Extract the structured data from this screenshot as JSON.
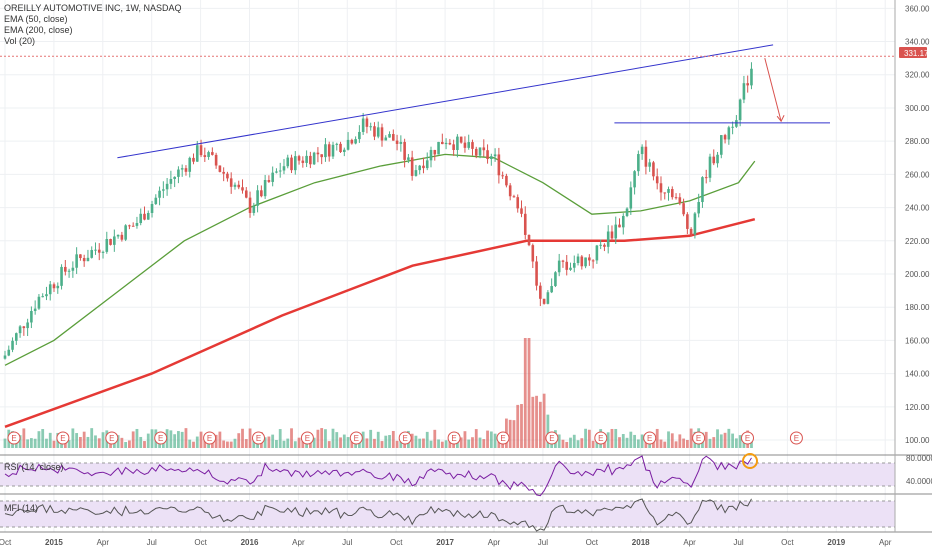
{
  "legend": {
    "title": "OREILLY AUTOMOTIVE INC, 1W, NASDAQ",
    "ema50": "EMA (50, close)",
    "ema200": "EMA (200, close)",
    "vol": "Vol (20)"
  },
  "last_price_label": "331.17",
  "rsi_label": "RSI (14, close)",
  "mfi_label": "MFI (14)",
  "earnings_marker": "E",
  "colors": {
    "up": "#4caf8a",
    "down": "#d9534f",
    "ema50": "#5a9e3a",
    "ema200": "#e53935",
    "trendline": "#3333cc",
    "rsi": "#7b1fa2",
    "oscillator_band": "#e9ddf5",
    "price_line": "#e57373",
    "highlight": "#f39c12"
  },
  "chart_data": {
    "type": "candlestick",
    "title": "OREILLY AUTOMOTIVE INC, 1W, NASDAQ",
    "y_axis": {
      "ticks": [
        100,
        120,
        140,
        160,
        180,
        200,
        220,
        240,
        260,
        280,
        300,
        320,
        340,
        360
      ],
      "range": [
        94,
        362
      ]
    },
    "x_axis": {
      "labels": [
        "Oct",
        "2015",
        "Apr",
        "Jul",
        "Oct",
        "2016",
        "Apr",
        "Jul",
        "Oct",
        "2017",
        "Apr",
        "Jul",
        "Oct",
        "2018",
        "Apr",
        "Jul",
        "Oct",
        "2019",
        "Apr"
      ]
    },
    "price_anchors": [
      {
        "time": "2014-10",
        "price": 151
      },
      {
        "time": "2014-12",
        "price": 185
      },
      {
        "time": "2015-02",
        "price": 205
      },
      {
        "time": "2015-04",
        "price": 218
      },
      {
        "time": "2015-06",
        "price": 230
      },
      {
        "time": "2015-08",
        "price": 255
      },
      {
        "time": "2015-10",
        "price": 275
      },
      {
        "time": "2015-12",
        "price": 255
      },
      {
        "time": "2016-01",
        "price": 240
      },
      {
        "time": "2016-03",
        "price": 265
      },
      {
        "time": "2016-05",
        "price": 272
      },
      {
        "time": "2016-07",
        "price": 280
      },
      {
        "time": "2016-08",
        "price": 290
      },
      {
        "time": "2016-10",
        "price": 280
      },
      {
        "time": "2016-11",
        "price": 262
      },
      {
        "time": "2017-01",
        "price": 282
      },
      {
        "time": "2017-03",
        "price": 272
      },
      {
        "time": "2017-04",
        "price": 270
      },
      {
        "time": "2017-05",
        "price": 250
      },
      {
        "time": "2017-06",
        "price": 225
      },
      {
        "time": "2017-07",
        "price": 175
      },
      {
        "time": "2017-08",
        "price": 205
      },
      {
        "time": "2017-10",
        "price": 210
      },
      {
        "time": "2017-12",
        "price": 235
      },
      {
        "time": "2018-01",
        "price": 275
      },
      {
        "time": "2018-02",
        "price": 255
      },
      {
        "time": "2018-03",
        "price": 250
      },
      {
        "time": "2018-04",
        "price": 225
      },
      {
        "time": "2018-05",
        "price": 262
      },
      {
        "time": "2018-06",
        "price": 280
      },
      {
        "time": "2018-07",
        "price": 300
      },
      {
        "time": "2018-08",
        "price": 331.17
      }
    ],
    "series": [
      {
        "name": "EMA (50, close)",
        "points": [
          {
            "time": "2014-10",
            "value": 145
          },
          {
            "time": "2015-01",
            "value": 160
          },
          {
            "time": "2015-05",
            "value": 190
          },
          {
            "time": "2015-09",
            "value": 220
          },
          {
            "time": "2016-01",
            "value": 240
          },
          {
            "time": "2016-05",
            "value": 255
          },
          {
            "time": "2016-09",
            "value": 265
          },
          {
            "time": "2017-01",
            "value": 272
          },
          {
            "time": "2017-04",
            "value": 270
          },
          {
            "time": "2017-07",
            "value": 255
          },
          {
            "time": "2017-10",
            "value": 236
          },
          {
            "time": "2018-01",
            "value": 238
          },
          {
            "time": "2018-04",
            "value": 244
          },
          {
            "time": "2018-07",
            "value": 255
          },
          {
            "time": "2018-08",
            "value": 268
          }
        ]
      },
      {
        "name": "EMA (200, close)",
        "points": [
          {
            "time": "2014-10",
            "value": 108
          },
          {
            "time": "2015-07",
            "value": 140
          },
          {
            "time": "2016-03",
            "value": 175
          },
          {
            "time": "2016-11",
            "value": 205
          },
          {
            "time": "2017-06",
            "value": 220
          },
          {
            "time": "2017-12",
            "value": 220
          },
          {
            "time": "2018-04",
            "value": 223
          },
          {
            "time": "2018-08",
            "value": 233
          }
        ]
      },
      {
        "name": "Vol (20)",
        "note_values_relative": true
      }
    ],
    "annotations": {
      "trendline": {
        "from": {
          "time": "2015-06",
          "price": 270
        },
        "to": {
          "time": "2018-09",
          "price": 338
        }
      },
      "horizontal_level": {
        "from": "2017-12",
        "to": "2018-12",
        "price": 291
      },
      "arrow": {
        "from": {
          "time": "2018-08",
          "price": 330
        },
        "to": {
          "time": "2018-09",
          "price": 292
        }
      }
    },
    "rsi": {
      "levels": [
        80,
        40
      ],
      "range": [
        20,
        100
      ]
    },
    "mfi": {
      "levels": []
    }
  }
}
